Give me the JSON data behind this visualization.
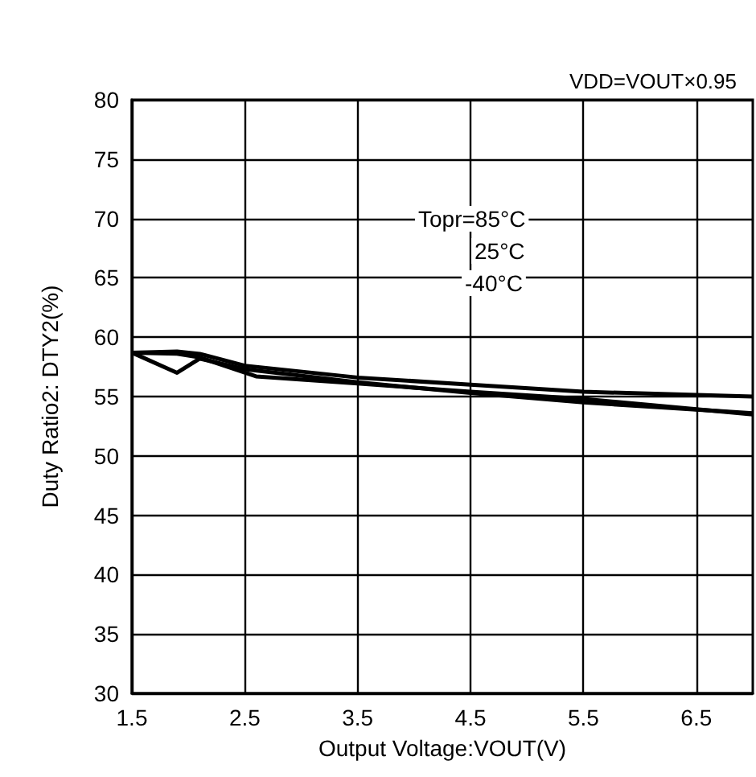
{
  "chart_data": {
    "type": "line",
    "xlabel": "Output Voltage:VOUT(V)",
    "ylabel": "Duty Ratio2: DTY2(%)",
    "xlim": [
      1.5,
      7.0
    ],
    "xticks": [
      1.5,
      2.5,
      3.5,
      4.5,
      5.5,
      6.5
    ],
    "ylim": [
      30,
      80
    ],
    "yticks": [
      30,
      35,
      40,
      45,
      50,
      55,
      60,
      65,
      70,
      75,
      80
    ],
    "grid": true,
    "marker": "none",
    "line_style": "solid",
    "annotations": [
      "VDD=VOUT×0.95",
      "Topr=85°C",
      "25°C",
      "-40°C"
    ],
    "series": [
      {
        "color": "#000000",
        "x": [
          1.5,
          1.9,
          2.1,
          2.5,
          3.5,
          4.5,
          5.5,
          7.0
        ],
        "values": [
          58.7,
          58.8,
          58.6,
          57.6,
          56.6,
          56.0,
          55.4,
          55.0
        ]
      },
      {
        "color": "#000000",
        "x": [
          1.5,
          1.9,
          2.1,
          2.5,
          3.5,
          4.5,
          5.5,
          7.0
        ],
        "values": [
          58.7,
          57.0,
          58.2,
          57.3,
          56.2,
          55.3,
          54.5,
          53.6
        ]
      },
      {
        "color": "#000000",
        "x": [
          1.5,
          1.9,
          2.1,
          2.6,
          3.5,
          4.5,
          5.5,
          7.0
        ],
        "values": [
          58.7,
          58.6,
          58.3,
          56.7,
          56.1,
          55.4,
          54.8,
          53.5
        ]
      }
    ]
  }
}
